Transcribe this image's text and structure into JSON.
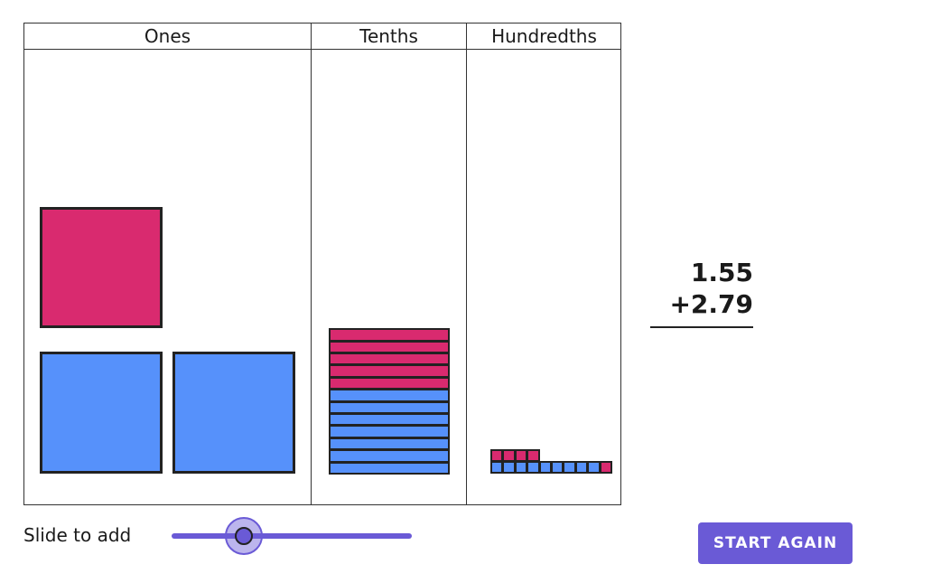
{
  "columns": {
    "ones": "Ones",
    "tenths": "Tenths",
    "hundredths": "Hundredths"
  },
  "blocks": {
    "ones": {
      "first_addend": 1,
      "second_addend": 2
    },
    "tenths": {
      "first_addend": 5,
      "second_addend": 7
    },
    "hundredths": {
      "first_addend": 5,
      "second_addend": 9
    }
  },
  "colors": {
    "first_addend": "#d92a6f",
    "second_addend": "#5691fb",
    "accent": "#6a5ad6"
  },
  "sum": {
    "first": "1.55",
    "second": "+2.79"
  },
  "slider": {
    "label": "Slide to add",
    "progress": 0.3
  },
  "button": {
    "label": "START AGAIN"
  }
}
